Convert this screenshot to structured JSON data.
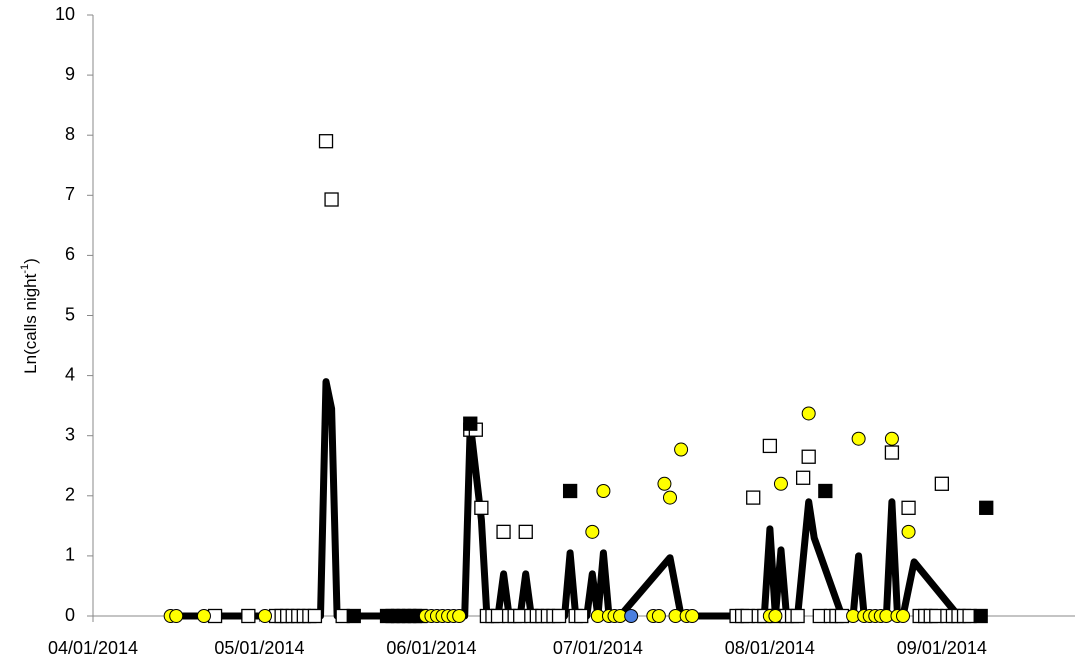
{
  "chart_data": {
    "type": "scatter",
    "ylabel": [
      "Ln(calls night",
      "-1",
      ")"
    ],
    "xlim": [
      "04/01/2014",
      "09/25/2014"
    ],
    "xticks": [
      "04/01/2014",
      "05/01/2014",
      "06/01/2014",
      "07/01/2014",
      "08/01/2014",
      "09/01/2014"
    ],
    "ylim": [
      0,
      10
    ],
    "yticks": [
      0,
      1,
      2,
      3,
      4,
      5,
      6,
      7,
      8,
      9,
      10
    ],
    "series": [
      {
        "marker": "line",
        "color": "#000000",
        "x": [
          "04/15/2014",
          "05/12/2014",
          "05/13/2014",
          "05/14/2014",
          "05/15/2014",
          "06/07/2014",
          "06/08/2014",
          "06/10/2014",
          "06/11/2014",
          "06/13/2014",
          "06/14/2014",
          "06/15/2014",
          "06/17/2014",
          "06/18/2014",
          "06/19/2014",
          "06/25/2014",
          "06/26/2014",
          "06/27/2014",
          "06/29/2014",
          "06/30/2014",
          "07/01/2014",
          "07/02/2014",
          "07/03/2014",
          "07/05/2014",
          "07/14/2014",
          "07/16/2014",
          "07/31/2014",
          "08/01/2014",
          "08/02/2014",
          "08/03/2014",
          "08/04/2014",
          "08/06/2014",
          "08/08/2014",
          "08/09/2014",
          "08/14/2014",
          "08/16/2014",
          "08/17/2014",
          "08/18/2014",
          "08/22/2014",
          "08/23/2014",
          "08/24/2014",
          "08/25/2014",
          "08/27/2014",
          "09/04/2014",
          "09/08/2014"
        ],
        "values": [
          0,
          0,
          3.9,
          3.45,
          0,
          0,
          3.2,
          1.6,
          0,
          0,
          0.7,
          0,
          0,
          0.7,
          0,
          0,
          1.05,
          0,
          0,
          0.7,
          0,
          1.05,
          0,
          0,
          0.97,
          0,
          0,
          1.45,
          0,
          1.1,
          0,
          0,
          1.9,
          1.3,
          0,
          0,
          1.0,
          0,
          0,
          1.9,
          0,
          0,
          0.9,
          0,
          0
        ]
      },
      {
        "marker": "square",
        "color": "#ffffff",
        "x": [
          "04/23/2014",
          "04/29/2014",
          "05/04/2014",
          "05/05/2014",
          "05/06/2014",
          "05/07/2014",
          "05/08/2014",
          "05/09/2014",
          "05/10/2014",
          "05/11/2014",
          "05/13/2014",
          "05/14/2014",
          "05/16/2014",
          "06/08/2014",
          "06/09/2014",
          "06/10/2014",
          "06/11/2014",
          "06/12/2014",
          "06/13/2014",
          "06/14/2014",
          "06/15/2014",
          "06/16/2014",
          "06/17/2014",
          "06/18/2014",
          "06/19/2014",
          "06/20/2014",
          "06/21/2014",
          "06/22/2014",
          "06/23/2014",
          "06/24/2014",
          "06/27/2014",
          "06/28/2014",
          "07/26/2014",
          "07/27/2014",
          "07/28/2014",
          "07/29/2014",
          "07/30/2014",
          "07/31/2014",
          "08/01/2014",
          "08/02/2014",
          "08/04/2014",
          "08/05/2014",
          "08/06/2014",
          "08/07/2014",
          "08/08/2014",
          "08/10/2014",
          "08/12/2014",
          "08/13/2014",
          "08/14/2014",
          "08/23/2014",
          "08/26/2014",
          "08/28/2014",
          "08/29/2014",
          "08/30/2014",
          "08/31/2014",
          "09/01/2014",
          "09/02/2014",
          "09/03/2014",
          "09/04/2014",
          "09/05/2014",
          "09/06/2014"
        ],
        "values": [
          0,
          0,
          0,
          0,
          0,
          0,
          0,
          0,
          0,
          0,
          7.9,
          6.93,
          0,
          3.1,
          3.1,
          1.8,
          0,
          0,
          0,
          1.4,
          0,
          0,
          0,
          1.4,
          0,
          0,
          0,
          0,
          0,
          0,
          0,
          0,
          0,
          0,
          0,
          1.97,
          0,
          0,
          2.83,
          0,
          0,
          0,
          0,
          2.3,
          2.65,
          0,
          0,
          0,
          0,
          2.72,
          1.8,
          0,
          0,
          0,
          0,
          2.2,
          0,
          0,
          0,
          0,
          0
        ]
      },
      {
        "marker": "square",
        "color": "#000000",
        "x": [
          "05/18/2014",
          "05/24/2014",
          "05/25/2014",
          "05/26/2014",
          "05/27/2014",
          "05/28/2014",
          "05/29/2014",
          "05/30/2014",
          "06/08/2014",
          "06/26/2014",
          "08/11/2014",
          "09/08/2014",
          "09/09/2014"
        ],
        "values": [
          0,
          0,
          0,
          0,
          0,
          0,
          0,
          0,
          3.2,
          2.08,
          2.08,
          0,
          1.8
        ]
      },
      {
        "marker": "circle",
        "color": "#ffff00",
        "x": [
          "04/15/2014",
          "04/16/2014",
          "04/21/2014",
          "05/02/2014",
          "05/31/2014",
          "06/01/2014",
          "06/02/2014",
          "06/03/2014",
          "06/04/2014",
          "06/05/2014",
          "06/06/2014",
          "06/30/2014",
          "07/01/2014",
          "07/02/2014",
          "07/03/2014",
          "07/04/2014",
          "07/05/2014",
          "07/11/2014",
          "07/12/2014",
          "07/13/2014",
          "07/14/2014",
          "07/15/2014",
          "07/16/2014",
          "07/17/2014",
          "07/18/2014",
          "08/01/2014",
          "08/02/2014",
          "08/03/2014",
          "08/08/2014",
          "08/16/2014",
          "08/17/2014",
          "08/18/2014",
          "08/19/2014",
          "08/20/2014",
          "08/21/2014",
          "08/22/2014",
          "08/23/2014",
          "08/24/2014",
          "08/25/2014",
          "08/26/2014"
        ],
        "values": [
          0,
          0,
          0,
          0,
          0,
          0,
          0,
          0,
          0,
          0,
          0,
          1.4,
          0,
          2.08,
          0,
          0,
          0,
          0,
          0,
          2.2,
          1.97,
          0,
          2.77,
          0,
          0,
          0,
          0,
          2.2,
          3.37,
          0,
          2.95,
          0,
          0,
          0,
          0,
          0,
          2.95,
          0,
          0,
          1.4
        ]
      },
      {
        "marker": "circle",
        "color": "#4a7fe0",
        "x": [
          "07/07/2014"
        ],
        "values": [
          0
        ]
      }
    ]
  }
}
